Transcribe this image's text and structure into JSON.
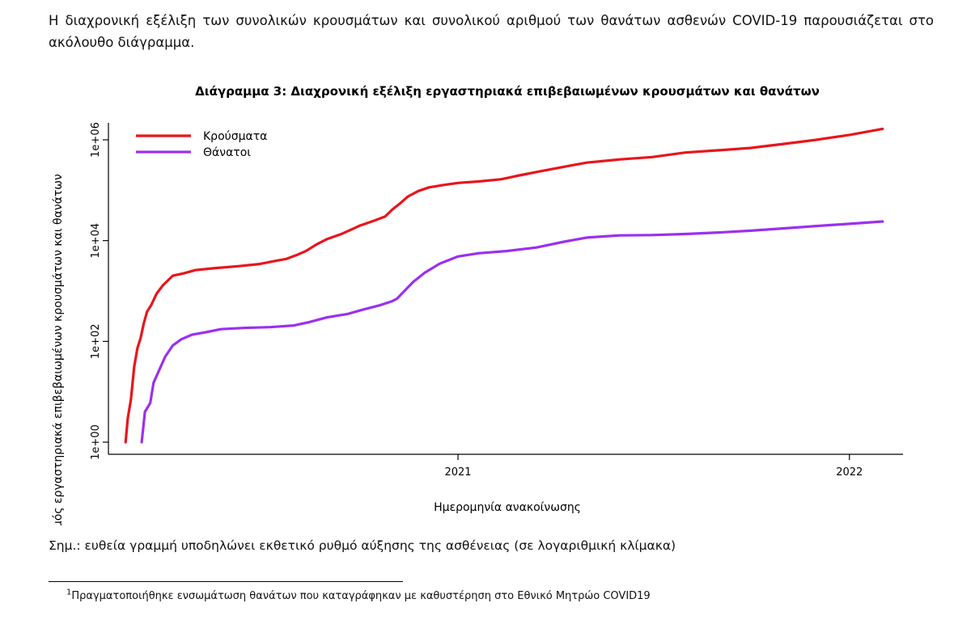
{
  "intro_text": "Η διαχρονική εξέλιξη των συνολικών κρουσμάτων και συνολικού αριθμού των θανάτων ασθενών COVID-19 παρουσιάζεται στο ακόλουθο διάγραμμα.",
  "note_text": "Σημ.: ευθεία γραμμή υποδηλώνει εκθετικό ρυθμό αύξησης της ασθένειας (σε λογαριθμική κλίμακα)",
  "footnote": {
    "marker": "1",
    "text": "Πραγματοποιήθηκε ενσωμάτωση θανάτων που καταγράφηκαν με καθυστέρηση στο Εθνικό Μητρώο COVID19"
  },
  "chart_data": {
    "type": "line",
    "title": "Διάγραμμα 3: Διαχρονική εξέλιξη εργαστηριακά επιβεβαιωμένων κρουσμάτων και θανάτων",
    "xlabel": "Ημερομηνία ανακοίνωσης",
    "ylabel": "Αριθμός εργαστηριακά επιβεβαιωμένων κρουσμάτων και θανάτων",
    "y_scale": "log",
    "xlim": [
      "2020-02-10",
      "2022-02-20"
    ],
    "ylim": [
      1,
      1500000
    ],
    "x_ticks": [
      {
        "date": "2021-01-01",
        "label": "2021"
      },
      {
        "date": "2022-01-01",
        "label": "2022"
      }
    ],
    "y_ticks": [
      {
        "value": 1,
        "label": "1e+00"
      },
      {
        "value": 100,
        "label": "1e+02"
      },
      {
        "value": 10000,
        "label": "1e+04"
      },
      {
        "value": 1000000,
        "label": "1e+06"
      }
    ],
    "grid": false,
    "legend_position": "top-left",
    "series": [
      {
        "name": "Κρούσματα",
        "color": "#e8151b",
        "points": [
          [
            "2020-02-26",
            1
          ],
          [
            "2020-02-28",
            3
          ],
          [
            "2020-03-02",
            7
          ],
          [
            "2020-03-05",
            31
          ],
          [
            "2020-03-08",
            73
          ],
          [
            "2020-03-11",
            117
          ],
          [
            "2020-03-14",
            228
          ],
          [
            "2020-03-17",
            387
          ],
          [
            "2020-03-21",
            530
          ],
          [
            "2020-03-26",
            892
          ],
          [
            "2020-04-01",
            1314
          ],
          [
            "2020-04-10",
            2011
          ],
          [
            "2020-04-20",
            2235
          ],
          [
            "2020-05-01",
            2591
          ],
          [
            "2020-05-20",
            2853
          ],
          [
            "2020-06-10",
            3102
          ],
          [
            "2020-06-30",
            3432
          ],
          [
            "2020-07-15",
            3964
          ],
          [
            "2020-07-25",
            4337
          ],
          [
            "2020-08-03",
            5123
          ],
          [
            "2020-08-12",
            6177
          ],
          [
            "2020-08-22",
            8381
          ],
          [
            "2020-09-01",
            10757
          ],
          [
            "2020-09-15",
            13730
          ],
          [
            "2020-10-01",
            19613
          ],
          [
            "2020-10-15",
            24982
          ],
          [
            "2020-10-25",
            29992
          ],
          [
            "2020-11-01",
            41879
          ],
          [
            "2020-11-08",
            54809
          ],
          [
            "2020-11-15",
            74205
          ],
          [
            "2020-11-25",
            96417
          ],
          [
            "2020-12-05",
            114000
          ],
          [
            "2020-12-20",
            128000
          ],
          [
            "2021-01-01",
            139447
          ],
          [
            "2021-01-20",
            149000
          ],
          [
            "2021-02-10",
            165000
          ],
          [
            "2021-03-01",
            200000
          ],
          [
            "2021-03-20",
            240000
          ],
          [
            "2021-04-15",
            305000
          ],
          [
            "2021-05-01",
            352000
          ],
          [
            "2021-06-01",
            408000
          ],
          [
            "2021-07-01",
            455000
          ],
          [
            "2021-08-01",
            560000
          ],
          [
            "2021-09-01",
            620000
          ],
          [
            "2021-10-01",
            690000
          ],
          [
            "2021-11-01",
            830000
          ],
          [
            "2021-12-01",
            1000000
          ],
          [
            "2022-01-01",
            1250000
          ],
          [
            "2022-02-01",
            1650000
          ]
        ]
      },
      {
        "name": "Θάνατοι",
        "color": "#9b30f0",
        "points": [
          [
            "2020-03-12",
            1
          ],
          [
            "2020-03-15",
            4
          ],
          [
            "2020-03-20",
            6
          ],
          [
            "2020-03-23",
            15
          ],
          [
            "2020-03-28",
            26
          ],
          [
            "2020-04-03",
            50
          ],
          [
            "2020-04-10",
            83
          ],
          [
            "2020-04-18",
            110
          ],
          [
            "2020-04-28",
            136
          ],
          [
            "2020-05-10",
            151
          ],
          [
            "2020-05-25",
            175
          ],
          [
            "2020-06-15",
            185
          ],
          [
            "2020-07-10",
            192
          ],
          [
            "2020-08-01",
            207
          ],
          [
            "2020-08-15",
            240
          ],
          [
            "2020-09-01",
            300
          ],
          [
            "2020-09-20",
            350
          ],
          [
            "2020-10-05",
            430
          ],
          [
            "2020-10-20",
            520
          ],
          [
            "2020-10-31",
            620
          ],
          [
            "2020-11-05",
            700
          ],
          [
            "2020-11-10",
            900
          ],
          [
            "2020-11-20",
            1500
          ],
          [
            "2020-12-01",
            2300
          ],
          [
            "2020-12-15",
            3500
          ],
          [
            "2021-01-01",
            4838
          ],
          [
            "2021-01-20",
            5600
          ],
          [
            "2021-02-15",
            6200
          ],
          [
            "2021-03-15",
            7300
          ],
          [
            "2021-04-10",
            9500
          ],
          [
            "2021-05-01",
            11500
          ],
          [
            "2021-06-01",
            12700
          ],
          [
            "2021-07-01",
            12900
          ],
          [
            "2021-08-01",
            13500
          ],
          [
            "2021-09-01",
            14500
          ],
          [
            "2021-10-01",
            15700
          ],
          [
            "2021-11-01",
            17500
          ],
          [
            "2021-12-01",
            19500
          ],
          [
            "2022-01-01",
            21500
          ],
          [
            "2022-02-01",
            24000
          ]
        ]
      }
    ]
  }
}
